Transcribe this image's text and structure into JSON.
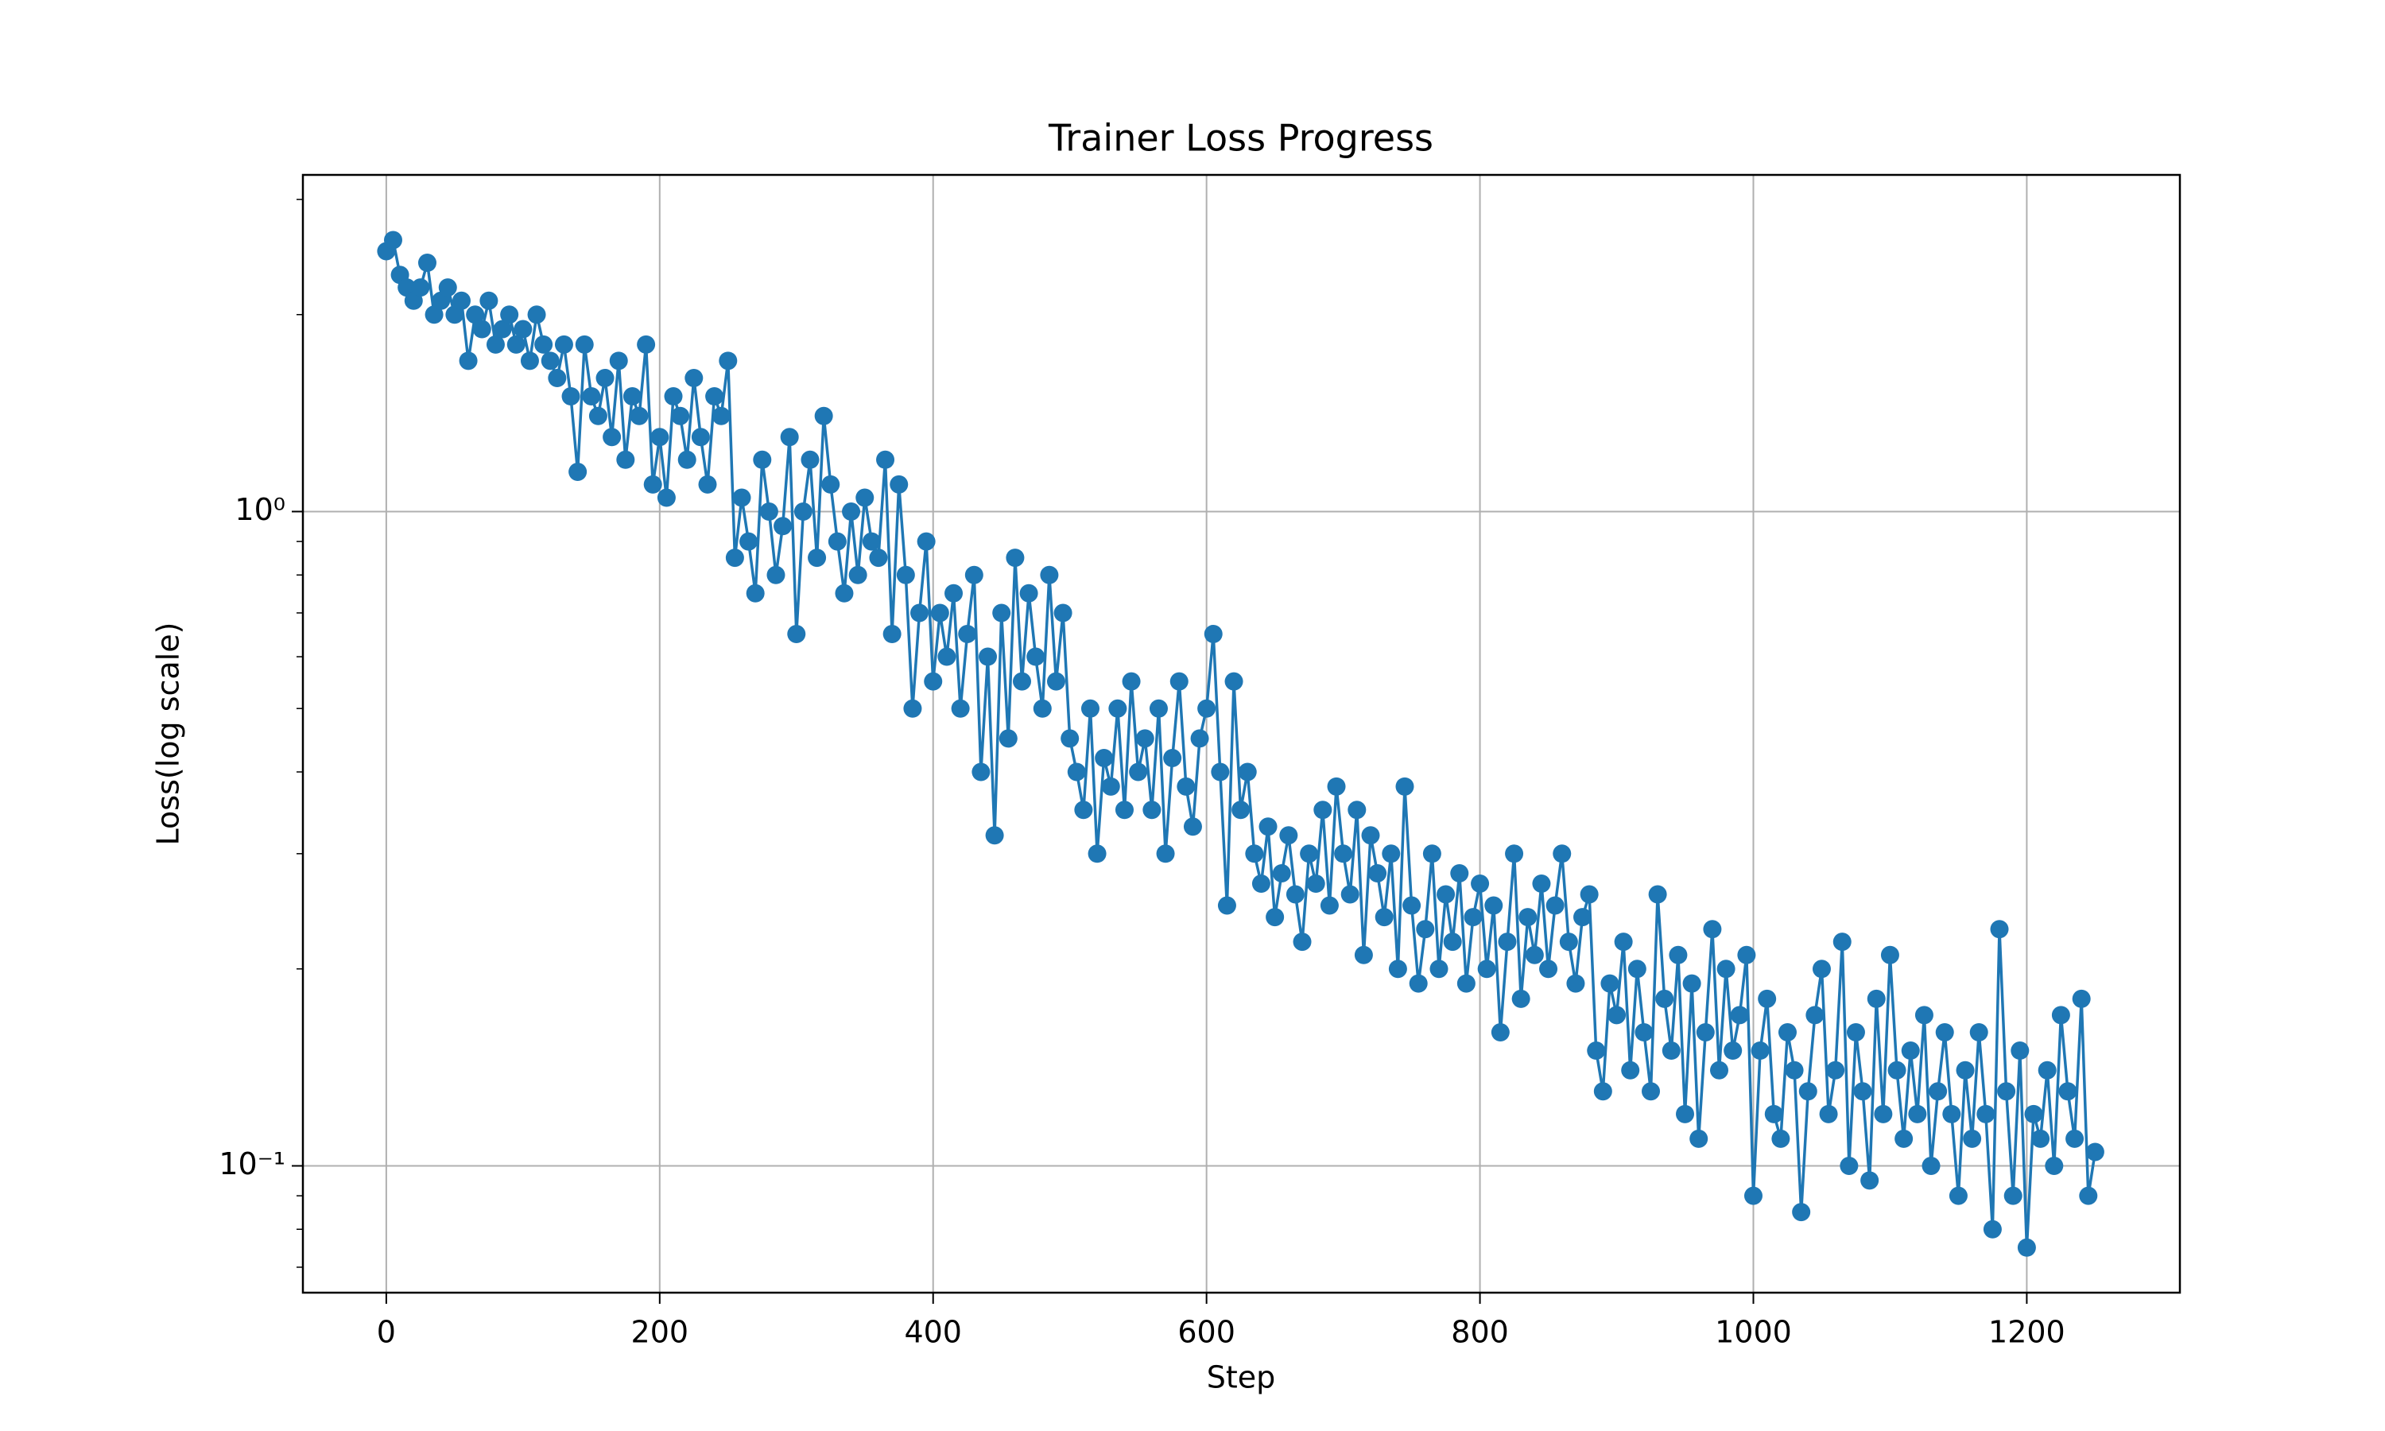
{
  "chart_data": {
    "type": "line",
    "title": "Trainer Loss Progress",
    "x_label": "Step",
    "y_label": "Loss(log scale)",
    "log_y": true,
    "grid": true,
    "color": "#1f77b4",
    "marker": "circle",
    "xlim": [
      -61,
      1312
    ],
    "ylim": [
      0.064,
      3.27
    ],
    "xticks": [
      0,
      200,
      400,
      600,
      800,
      1000,
      1200
    ],
    "yticks": [
      {
        "value": 0.1,
        "label": "10⁻¹"
      },
      {
        "value": 1,
        "label": "10⁰"
      }
    ],
    "yticks_minor": [
      0.07,
      0.08,
      0.09,
      0.2,
      0.3,
      0.4,
      0.5,
      0.6,
      0.7,
      0.8,
      0.9,
      2,
      3
    ],
    "x": [
      0,
      5,
      10,
      15,
      20,
      25,
      30,
      35,
      40,
      45,
      50,
      55,
      60,
      65,
      70,
      75,
      80,
      85,
      90,
      95,
      100,
      105,
      110,
      115,
      120,
      125,
      130,
      135,
      140,
      145,
      150,
      155,
      160,
      165,
      170,
      175,
      180,
      185,
      190,
      195,
      200,
      205,
      210,
      215,
      220,
      225,
      230,
      235,
      240,
      245,
      250,
      255,
      260,
      265,
      270,
      275,
      280,
      285,
      290,
      295,
      300,
      305,
      310,
      315,
      320,
      325,
      330,
      335,
      340,
      345,
      350,
      355,
      360,
      365,
      370,
      375,
      380,
      385,
      390,
      395,
      400,
      405,
      410,
      415,
      420,
      425,
      430,
      435,
      440,
      445,
      450,
      455,
      460,
      465,
      470,
      475,
      480,
      485,
      490,
      495,
      500,
      505,
      510,
      515,
      520,
      525,
      530,
      535,
      540,
      545,
      550,
      555,
      560,
      565,
      570,
      575,
      580,
      585,
      590,
      595,
      600,
      605,
      610,
      615,
      620,
      625,
      630,
      635,
      640,
      645,
      650,
      655,
      660,
      665,
      670,
      675,
      680,
      685,
      690,
      695,
      700,
      705,
      710,
      715,
      720,
      725,
      730,
      735,
      740,
      745,
      750,
      755,
      760,
      765,
      770,
      775,
      780,
      785,
      790,
      795,
      800,
      805,
      810,
      815,
      820,
      825,
      830,
      835,
      840,
      845,
      850,
      855,
      860,
      865,
      870,
      875,
      880,
      885,
      890,
      895,
      900,
      905,
      910,
      915,
      920,
      925,
      930,
      935,
      940,
      945,
      950,
      955,
      960,
      965,
      970,
      975,
      980,
      985,
      990,
      995,
      1000,
      1005,
      1010,
      1015,
      1020,
      1025,
      1030,
      1035,
      1040,
      1045,
      1050,
      1055,
      1060,
      1065,
      1070,
      1075,
      1080,
      1085,
      1090,
      1095,
      1100,
      1105,
      1110,
      1115,
      1120,
      1125,
      1130,
      1135,
      1140,
      1145,
      1150,
      1155,
      1160,
      1165,
      1170,
      1175,
      1180,
      1185,
      1190,
      1195,
      1200,
      1205,
      1210,
      1215,
      1220,
      1225,
      1230,
      1235,
      1240,
      1245,
      1250
    ],
    "values": [
      2.5,
      2.6,
      2.3,
      2.2,
      2.1,
      2.2,
      2.4,
      2.0,
      2.1,
      2.2,
      2.0,
      2.1,
      1.7,
      2.0,
      1.9,
      2.1,
      1.8,
      1.9,
      2.0,
      1.8,
      1.9,
      1.7,
      2.0,
      1.8,
      1.7,
      1.6,
      1.8,
      1.5,
      1.15,
      1.8,
      1.5,
      1.4,
      1.6,
      1.3,
      1.7,
      1.2,
      1.5,
      1.4,
      1.8,
      1.1,
      1.3,
      1.05,
      1.5,
      1.4,
      1.2,
      1.6,
      1.3,
      1.1,
      1.5,
      1.4,
      1.7,
      0.85,
      1.05,
      0.9,
      0.75,
      1.2,
      1.0,
      0.8,
      0.95,
      1.3,
      0.65,
      1.0,
      1.2,
      0.85,
      1.4,
      1.1,
      0.9,
      0.75,
      1.0,
      0.8,
      1.05,
      0.9,
      0.85,
      1.2,
      0.65,
      1.1,
      0.8,
      0.5,
      0.7,
      0.9,
      0.55,
      0.7,
      0.6,
      0.75,
      0.5,
      0.65,
      0.8,
      0.4,
      0.6,
      0.32,
      0.7,
      0.45,
      0.85,
      0.55,
      0.75,
      0.6,
      0.5,
      0.8,
      0.55,
      0.7,
      0.45,
      0.4,
      0.35,
      0.5,
      0.3,
      0.42,
      0.38,
      0.5,
      0.35,
      0.55,
      0.4,
      0.45,
      0.35,
      0.5,
      0.3,
      0.42,
      0.55,
      0.38,
      0.33,
      0.45,
      0.5,
      0.65,
      0.4,
      0.25,
      0.55,
      0.35,
      0.4,
      0.3,
      0.27,
      0.33,
      0.24,
      0.28,
      0.32,
      0.26,
      0.22,
      0.3,
      0.27,
      0.35,
      0.25,
      0.38,
      0.3,
      0.26,
      0.35,
      0.21,
      0.32,
      0.28,
      0.24,
      0.3,
      0.2,
      0.38,
      0.25,
      0.19,
      0.23,
      0.3,
      0.2,
      0.26,
      0.22,
      0.28,
      0.19,
      0.24,
      0.27,
      0.2,
      0.25,
      0.16,
      0.22,
      0.3,
      0.18,
      0.24,
      0.21,
      0.27,
      0.2,
      0.25,
      0.3,
      0.22,
      0.19,
      0.24,
      0.26,
      0.15,
      0.13,
      0.19,
      0.17,
      0.22,
      0.14,
      0.2,
      0.16,
      0.13,
      0.26,
      0.18,
      0.15,
      0.21,
      0.12,
      0.19,
      0.11,
      0.16,
      0.23,
      0.14,
      0.2,
      0.15,
      0.17,
      0.21,
      0.09,
      0.15,
      0.18,
      0.12,
      0.11,
      0.16,
      0.14,
      0.085,
      0.13,
      0.17,
      0.2,
      0.12,
      0.14,
      0.22,
      0.1,
      0.16,
      0.13,
      0.095,
      0.18,
      0.12,
      0.21,
      0.14,
      0.11,
      0.15,
      0.12,
      0.17,
      0.1,
      0.13,
      0.16,
      0.12,
      0.09,
      0.14,
      0.11,
      0.16,
      0.12,
      0.08,
      0.23,
      0.13,
      0.09,
      0.15,
      0.075,
      0.12,
      0.11,
      0.14,
      0.1,
      0.17,
      0.13,
      0.11,
      0.18,
      0.09,
      0.105
    ]
  }
}
